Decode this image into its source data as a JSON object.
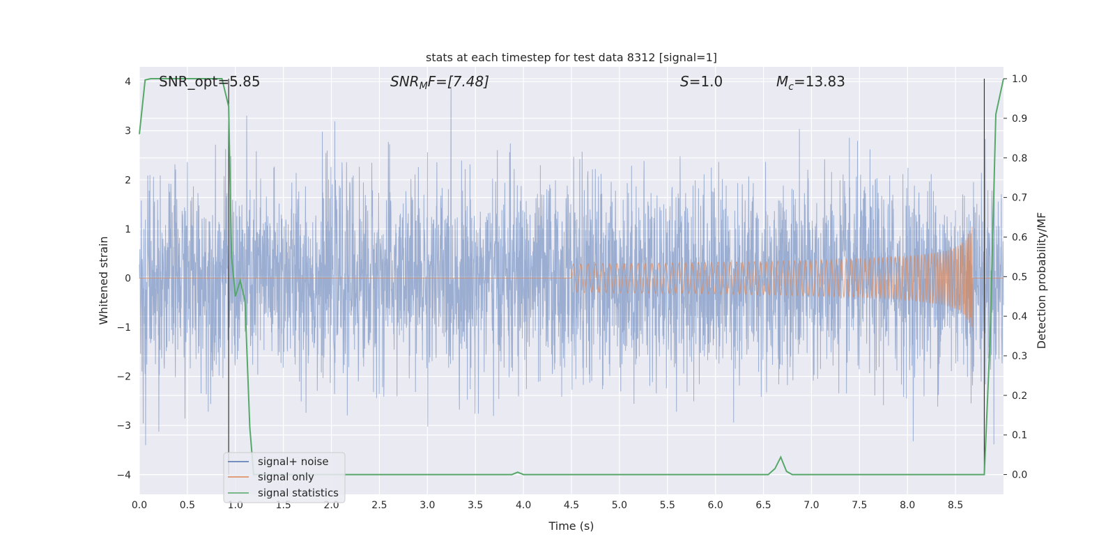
{
  "chart_data": {
    "type": "line",
    "title": "stats at each timestep for test data 8312 [signal=1]",
    "xlabel": "Time (s)",
    "ylabel_left": "Whitened strain",
    "ylabel_right": "Detection probability/MF",
    "xlim": [
      0,
      9.0
    ],
    "ylim_left": [
      -4.4,
      4.3
    ],
    "ylim_right": [
      -0.05,
      1.03
    ],
    "x_ticks": [
      "0.0",
      "0.5",
      "1.0",
      "1.5",
      "2.0",
      "2.5",
      "3.0",
      "3.5",
      "4.0",
      "4.5",
      "5.0",
      "5.5",
      "6.0",
      "6.5",
      "7.0",
      "7.5",
      "8.0",
      "8.5"
    ],
    "y_left_ticks": [
      "−4",
      "−3",
      "−2",
      "−1",
      "0",
      "1",
      "2",
      "3",
      "4"
    ],
    "y_right_ticks": [
      "0.0",
      "0.1",
      "0.2",
      "0.3",
      "0.4",
      "0.5",
      "0.6",
      "0.7",
      "0.8",
      "0.9",
      "1.0"
    ],
    "grid": true,
    "legend_placement": "lower-left",
    "annotations": {
      "snr_opt": "SNR_opt=5.85",
      "snr_mf_italic": "SNR",
      "snr_mf_sub": "M",
      "snr_mf_rest": "F=[7.48]",
      "s_italic": "S",
      "s_rest": "=1.0",
      "mc_italic": "M",
      "mc_sub": "c",
      "mc_rest": "=13.83"
    },
    "vertical_lines_x": [
      0.93,
      8.8
    ],
    "series": [
      {
        "name": "signal+ noise",
        "color": "#4c72b0",
        "kind": "noise",
        "x_range": [
          0,
          9.0
        ],
        "typical_band": [
          -1.6,
          1.6
        ],
        "peak_extent": [
          -3.4,
          3.9
        ]
      },
      {
        "name": "signal only",
        "color": "#dd8452",
        "kind": "chirp",
        "start_x": 4.5,
        "merger_x": 8.68,
        "peak_amplitude": 1.1
      },
      {
        "name": "signal statistics",
        "color": "#55a868",
        "axis": "right",
        "x": [
          0.0,
          0.06,
          0.12,
          0.2,
          0.3,
          0.4,
          0.5,
          0.6,
          0.7,
          0.8,
          0.86,
          0.93,
          0.96,
          1.0,
          1.05,
          1.1,
          1.15,
          1.19,
          1.22,
          1.3,
          2.0,
          3.0,
          3.88,
          3.94,
          4.0,
          5.0,
          6.0,
          6.55,
          6.62,
          6.68,
          6.74,
          6.8,
          7.0,
          8.0,
          8.5,
          8.8,
          8.86,
          8.92,
          9.0
        ],
        "y": [
          0.86,
          0.997,
          1.0,
          1.0,
          1.0,
          1.0,
          1.0,
          1.0,
          1.0,
          1.0,
          1.0,
          0.93,
          0.55,
          0.45,
          0.49,
          0.44,
          0.12,
          0.0,
          0.0,
          0.0,
          0.0,
          0.0,
          0.0,
          0.006,
          0.0,
          0.0,
          0.0,
          0.0,
          0.015,
          0.044,
          0.008,
          0.0,
          0.0,
          0.0,
          0.0,
          0.0,
          0.34,
          0.91,
          1.0
        ]
      }
    ]
  }
}
